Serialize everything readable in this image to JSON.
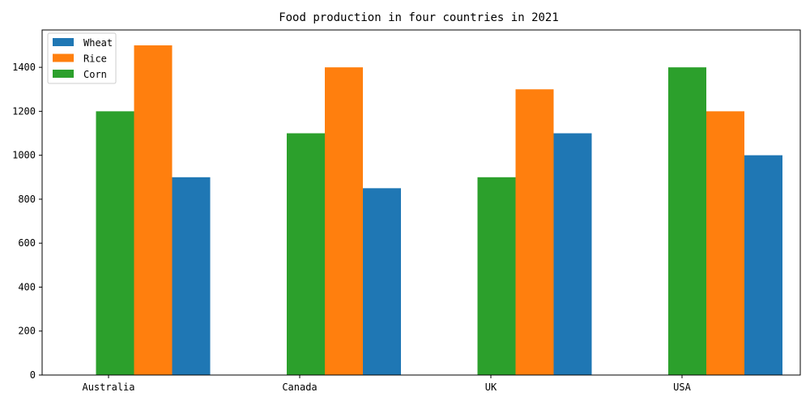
{
  "chart_data": {
    "type": "bar",
    "title": "Food production in four countries in 2021",
    "xlabel": "",
    "ylabel": "",
    "categories": [
      "Australia",
      "Canada",
      "UK",
      "USA"
    ],
    "ylim": [
      0,
      1570
    ],
    "yticks": [
      0,
      200,
      400,
      600,
      800,
      1000,
      1200,
      1400
    ],
    "grid": false,
    "legend_position": "top-left",
    "bar_order": [
      "Corn",
      "Rice",
      "Wheat"
    ],
    "series": [
      {
        "name": "Wheat",
        "color": "#1f77b4",
        "values": [
          900,
          850,
          1100,
          1000
        ]
      },
      {
        "name": "Rice",
        "color": "#ff7f0e",
        "values": [
          1500,
          1400,
          1300,
          1200
        ]
      },
      {
        "name": "Corn",
        "color": "#2ca02c",
        "values": [
          1200,
          1100,
          900,
          1400
        ]
      }
    ]
  }
}
